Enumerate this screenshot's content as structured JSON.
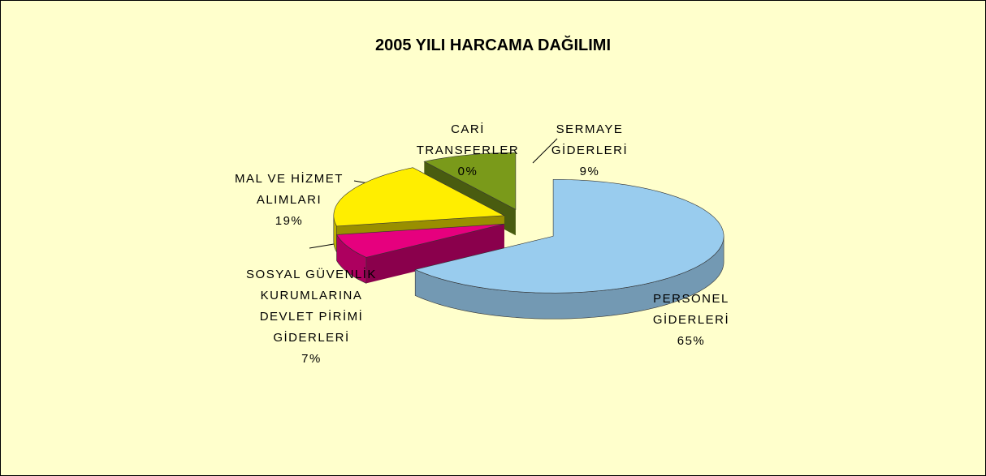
{
  "chart_data": {
    "type": "pie",
    "title": "2005 YILI HARCAMA DAĞILIMI",
    "categories": [
      "PERSONEL GİDERLERİ",
      "SOSYAL GÜVENLİK KURUMLARINA DEVLET PİRİMİ GİDERLERİ",
      "MAL VE HİZMET ALIMLARI",
      "CARİ TRANSFERLER",
      "SERMAYE GİDERLERİ"
    ],
    "values": [
      65,
      7,
      19,
      0,
      9
    ],
    "value_labels": [
      "65%",
      "7%",
      "19%",
      "0%",
      "9%"
    ],
    "colors": [
      "#99ccee",
      "#e6007e",
      "#ffee00",
      "#999999",
      "#7a9a1a"
    ]
  }
}
